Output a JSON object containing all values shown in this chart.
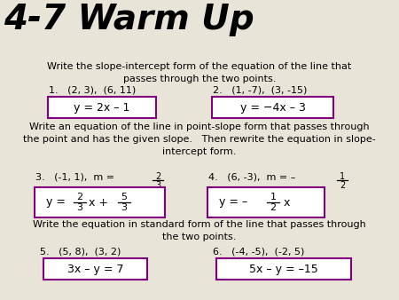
{
  "bg_color": "#e8e4d8",
  "title": "4-7 Warm Up",
  "box_color": "#800080",
  "text_color": "#000000",
  "s1_header": "Write the slope-intercept form of the equation of the line that\npasses through the two points.",
  "s2_header": "Write an equation of the line in point-slope form that passes through\nthe point and has the given slope.   Then rewrite the equation in slope-\nintercept form.",
  "s3_header": "Write the equation in standard form of the line that passes through\nthe two points.",
  "p1_label": "1.   (2, 3),  (6, 11)",
  "p2_label": "2.   (1, -7),  (3, -15)",
  "p3_label": "3.   (-1, 1),  m =",
  "p4_label": "4.   (6, -3),  m = –",
  "p5_label": "5.   (5, 8),  (3, 2)",
  "p6_label": "6.   (-4, -5),  (-2, 5)",
  "ans1": "y = 2x – 1",
  "ans2": "y = −4x – 3",
  "ans5": "3x – y = 7",
  "ans6": "5x – y = –15"
}
